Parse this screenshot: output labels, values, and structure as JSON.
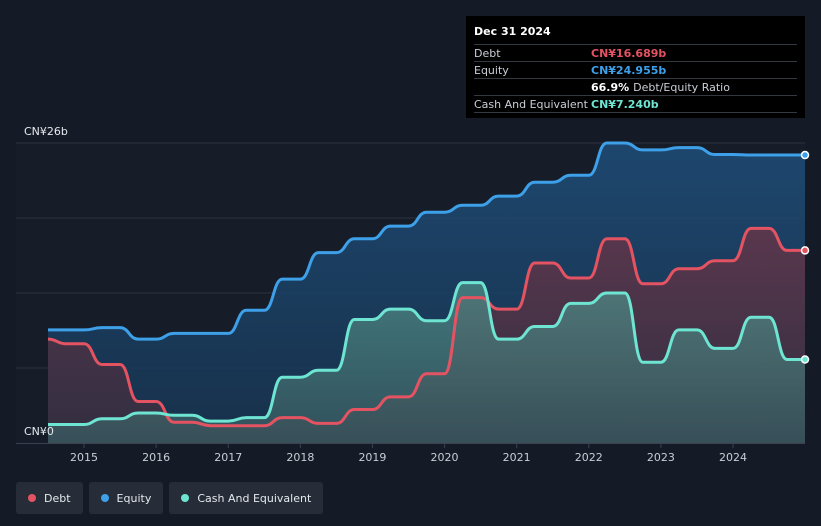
{
  "tooltip": {
    "date": "Dec 31 2024",
    "rows": [
      {
        "label": "Debt",
        "value": "CN¥16.689b",
        "color": "#e45362"
      },
      {
        "label": "Equity",
        "value": "CN¥24.955b",
        "color": "#3da0e8"
      },
      {
        "label": "",
        "value": "66.9%",
        "suffix": "Debt/Equity Ratio"
      },
      {
        "label": "Cash And Equivalent",
        "value": "CN¥7.240b",
        "color": "#6ee5d2"
      }
    ]
  },
  "legend": [
    {
      "label": "Debt",
      "color": "#e45362"
    },
    {
      "label": "Equity",
      "color": "#3da0e8"
    },
    {
      "label": "Cash And Equivalent",
      "color": "#6ee5d2"
    }
  ],
  "chart_data": {
    "type": "area",
    "y_axis_labels": [
      "CN¥26b",
      "CN¥0"
    ],
    "ylim": [
      0,
      26
    ],
    "xlim": [
      2014.5,
      2025.0
    ],
    "x_ticks": [
      "2015",
      "2016",
      "2017",
      "2018",
      "2019",
      "2020",
      "2021",
      "2022",
      "2023",
      "2024"
    ],
    "x_tick_values": [
      2015,
      2016,
      2017,
      2018,
      2019,
      2020,
      2021,
      2022,
      2023,
      2024
    ],
    "series": [
      {
        "name": "Equity",
        "color": "#3da0e8",
        "points": [
          [
            2014.5,
            9.8
          ],
          [
            2014.75,
            9.8
          ],
          [
            2015.0,
            9.8
          ],
          [
            2015.25,
            10.0
          ],
          [
            2015.5,
            10.0
          ],
          [
            2015.75,
            9.0
          ],
          [
            2016.0,
            9.0
          ],
          [
            2016.25,
            9.5
          ],
          [
            2016.5,
            9.5
          ],
          [
            2016.75,
            9.5
          ],
          [
            2017.0,
            9.5
          ],
          [
            2017.25,
            11.5
          ],
          [
            2017.5,
            11.5
          ],
          [
            2017.75,
            14.2
          ],
          [
            2018.0,
            14.2
          ],
          [
            2018.25,
            16.5
          ],
          [
            2018.5,
            16.5
          ],
          [
            2018.75,
            17.7
          ],
          [
            2019.0,
            17.7
          ],
          [
            2019.25,
            18.8
          ],
          [
            2019.5,
            18.8
          ],
          [
            2019.75,
            20.0
          ],
          [
            2020.0,
            20.0
          ],
          [
            2020.25,
            20.6
          ],
          [
            2020.5,
            20.6
          ],
          [
            2020.75,
            21.4
          ],
          [
            2021.0,
            21.4
          ],
          [
            2021.25,
            22.6
          ],
          [
            2021.5,
            22.6
          ],
          [
            2021.75,
            23.2
          ],
          [
            2022.0,
            23.2
          ],
          [
            2022.25,
            26.0
          ],
          [
            2022.5,
            26.0
          ],
          [
            2022.75,
            25.4
          ],
          [
            2023.0,
            25.4
          ],
          [
            2023.25,
            25.6
          ],
          [
            2023.5,
            25.6
          ],
          [
            2023.75,
            25.0
          ],
          [
            2024.0,
            25.0
          ],
          [
            2024.25,
            24.955
          ],
          [
            2024.5,
            24.955
          ],
          [
            2024.75,
            24.955
          ],
          [
            2025.0,
            24.955
          ]
        ]
      },
      {
        "name": "Debt",
        "color": "#e45362",
        "points": [
          [
            2014.5,
            9.0
          ],
          [
            2014.75,
            8.6
          ],
          [
            2015.0,
            8.6
          ],
          [
            2015.25,
            6.8
          ],
          [
            2015.5,
            6.8
          ],
          [
            2015.75,
            3.6
          ],
          [
            2016.0,
            3.6
          ],
          [
            2016.25,
            1.8
          ],
          [
            2016.5,
            1.8
          ],
          [
            2016.75,
            1.5
          ],
          [
            2017.0,
            1.5
          ],
          [
            2017.25,
            1.5
          ],
          [
            2017.5,
            1.5
          ],
          [
            2017.75,
            2.2
          ],
          [
            2018.0,
            2.2
          ],
          [
            2018.25,
            1.7
          ],
          [
            2018.5,
            1.7
          ],
          [
            2018.75,
            2.9
          ],
          [
            2019.0,
            2.9
          ],
          [
            2019.25,
            4.0
          ],
          [
            2019.5,
            4.0
          ],
          [
            2019.75,
            6.0
          ],
          [
            2020.0,
            6.0
          ],
          [
            2020.25,
            12.6
          ],
          [
            2020.5,
            12.6
          ],
          [
            2020.75,
            11.6
          ],
          [
            2021.0,
            11.6
          ],
          [
            2021.25,
            15.6
          ],
          [
            2021.5,
            15.6
          ],
          [
            2021.75,
            14.3
          ],
          [
            2022.0,
            14.3
          ],
          [
            2022.25,
            17.7
          ],
          [
            2022.5,
            17.7
          ],
          [
            2022.75,
            13.8
          ],
          [
            2023.0,
            13.8
          ],
          [
            2023.25,
            15.1
          ],
          [
            2023.5,
            15.1
          ],
          [
            2023.75,
            15.8
          ],
          [
            2024.0,
            15.8
          ],
          [
            2024.25,
            18.6
          ],
          [
            2024.5,
            18.6
          ],
          [
            2024.75,
            16.689
          ],
          [
            2025.0,
            16.689
          ]
        ]
      },
      {
        "name": "Cash And Equivalent",
        "color": "#6ee5d2",
        "points": [
          [
            2014.5,
            1.6
          ],
          [
            2014.75,
            1.6
          ],
          [
            2015.0,
            1.6
          ],
          [
            2015.25,
            2.1
          ],
          [
            2015.5,
            2.1
          ],
          [
            2015.75,
            2.6
          ],
          [
            2016.0,
            2.6
          ],
          [
            2016.25,
            2.4
          ],
          [
            2016.5,
            2.4
          ],
          [
            2016.75,
            1.9
          ],
          [
            2017.0,
            1.9
          ],
          [
            2017.25,
            2.2
          ],
          [
            2017.5,
            2.2
          ],
          [
            2017.75,
            5.7
          ],
          [
            2018.0,
            5.7
          ],
          [
            2018.25,
            6.3
          ],
          [
            2018.5,
            6.3
          ],
          [
            2018.75,
            10.7
          ],
          [
            2019.0,
            10.7
          ],
          [
            2019.25,
            11.6
          ],
          [
            2019.5,
            11.6
          ],
          [
            2019.75,
            10.6
          ],
          [
            2020.0,
            10.6
          ],
          [
            2020.25,
            13.9
          ],
          [
            2020.5,
            13.9
          ],
          [
            2020.75,
            9.0
          ],
          [
            2021.0,
            9.0
          ],
          [
            2021.25,
            10.1
          ],
          [
            2021.5,
            10.1
          ],
          [
            2021.75,
            12.1
          ],
          [
            2022.0,
            12.1
          ],
          [
            2022.25,
            13.0
          ],
          [
            2022.5,
            13.0
          ],
          [
            2022.75,
            7.0
          ],
          [
            2023.0,
            7.0
          ],
          [
            2023.25,
            9.8
          ],
          [
            2023.5,
            9.8
          ],
          [
            2023.75,
            8.2
          ],
          [
            2024.0,
            8.2
          ],
          [
            2024.25,
            10.9
          ],
          [
            2024.5,
            10.9
          ],
          [
            2024.75,
            7.24
          ],
          [
            2025.0,
            7.24
          ]
        ]
      }
    ],
    "grid": true,
    "legend_position": "bottom-left"
  }
}
